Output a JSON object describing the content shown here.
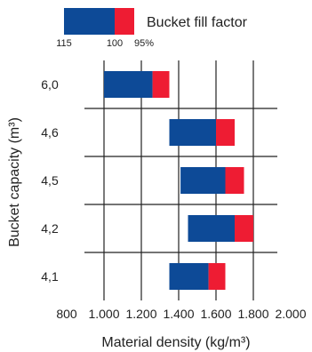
{
  "legend": {
    "title": "Bucket fill factor",
    "labels": [
      "115",
      "100",
      "95%"
    ]
  },
  "chart_data": {
    "type": "bar",
    "orientation": "horizontal-range",
    "xlabel": "Material density (kg/m³)",
    "ylabel": "Bucket capacity (m³)",
    "xlim": [
      800,
      2000
    ],
    "x_ticks": [
      "800",
      "1.000",
      "1.200",
      "1.400",
      "1.600",
      "1.800",
      "2.000"
    ],
    "x_tick_values": [
      800,
      1000,
      1200,
      1400,
      1600,
      1800,
      2000
    ],
    "grid": true,
    "legend_position": "top",
    "categories": [
      "6,0",
      "4,6",
      "4,5",
      "4,2",
      "4,1"
    ],
    "ranges": [
      {
        "category": "6,0",
        "fill_115": 1000,
        "fill_100": 1260,
        "fill_95": 1350
      },
      {
        "category": "4,6",
        "fill_115": 1350,
        "fill_100": 1600,
        "fill_95": 1700
      },
      {
        "category": "4,5",
        "fill_115": 1410,
        "fill_100": 1650,
        "fill_95": 1750
      },
      {
        "category": "4,2",
        "fill_115": 1450,
        "fill_100": 1700,
        "fill_95": 1800
      },
      {
        "category": "4,1",
        "fill_115": 1350,
        "fill_100": 1560,
        "fill_95": 1650
      }
    ],
    "colors": {
      "main": "#0d4a97",
      "tail": "#ee1c33"
    }
  }
}
